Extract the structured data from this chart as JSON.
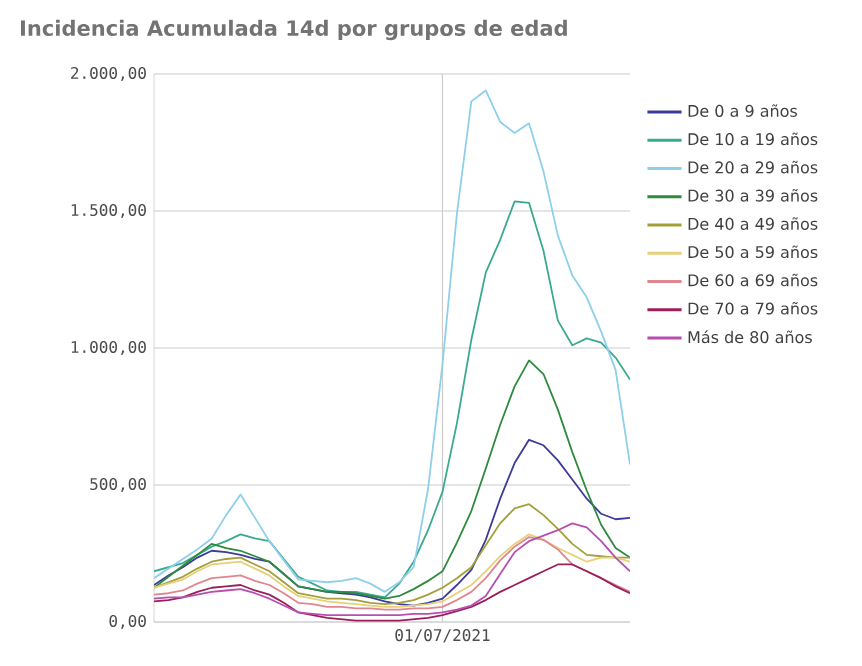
{
  "chart_data": {
    "type": "line",
    "title": "Incidencia Acumulada 14d por grupos de edad",
    "categories": [
      null,
      null,
      null,
      null,
      null,
      null,
      null,
      null,
      null,
      null,
      null,
      null,
      null,
      null,
      null,
      null,
      null,
      null,
      null,
      null,
      "01/07/2021",
      null,
      null,
      null,
      null,
      null,
      null,
      null,
      null,
      null,
      null,
      null,
      null,
      null
    ],
    "series": [
      {
        "name": "De 0 a 9 años",
        "color": "#3b3b9b",
        "values": [
          135,
          170,
          200,
          235,
          260,
          255,
          245,
          230,
          220,
          175,
          130,
          120,
          110,
          105,
          100,
          90,
          75,
          65,
          60,
          70,
          85,
          135,
          190,
          300,
          450,
          580,
          665,
          645,
          590,
          520,
          450,
          395,
          375,
          380
        ]
      },
      {
        "name": "De 10 a 19 años",
        "color": "#3aaa8f",
        "values": [
          185,
          200,
          215,
          245,
          275,
          295,
          320,
          305,
          295,
          230,
          165,
          140,
          115,
          110,
          110,
          100,
          90,
          140,
          220,
          335,
          475,
          725,
          1030,
          1275,
          1395,
          1535,
          1530,
          1355,
          1100,
          1010,
          1035,
          1020,
          965,
          885
        ]
      },
      {
        "name": "De 20 a 29 años",
        "color": "#8ecfeb",
        "values": [
          160,
          195,
          230,
          265,
          305,
          390,
          465,
          380,
          295,
          225,
          155,
          150,
          145,
          150,
          160,
          140,
          110,
          145,
          200,
          485,
          940,
          1490,
          1900,
          1940,
          1825,
          1785,
          1820,
          1645,
          1410,
          1265,
          1185,
          1060,
          920,
          575
        ]
      },
      {
        "name": "De 30 a 39 años",
        "color": "#2e8b3e",
        "values": [
          125,
          165,
          205,
          245,
          285,
          270,
          260,
          240,
          220,
          175,
          130,
          120,
          110,
          110,
          105,
          95,
          85,
          95,
          120,
          150,
          185,
          290,
          405,
          560,
          720,
          860,
          955,
          905,
          775,
          620,
          480,
          355,
          270,
          235
        ]
      },
      {
        "name": "De 40 a 49 años",
        "color": "#a3a03a",
        "values": [
          125,
          145,
          165,
          195,
          220,
          230,
          235,
          210,
          185,
          145,
          105,
          95,
          85,
          85,
          80,
          70,
          65,
          70,
          80,
          100,
          125,
          160,
          200,
          280,
          360,
          415,
          430,
          390,
          340,
          285,
          245,
          240,
          235,
          235
        ]
      },
      {
        "name": "De 50 a 59 años",
        "color": "#e8cf7a",
        "values": [
          125,
          140,
          155,
          185,
          210,
          215,
          220,
          195,
          170,
          130,
          95,
          85,
          75,
          70,
          65,
          60,
          55,
          55,
          60,
          65,
          75,
          105,
          135,
          185,
          240,
          285,
          320,
          300,
          270,
          245,
          220,
          235,
          235,
          220
        ]
      },
      {
        "name": "De 60 a 69 años",
        "color": "#e0868f",
        "values": [
          100,
          105,
          115,
          140,
          160,
          165,
          170,
          150,
          135,
          105,
          70,
          65,
          55,
          55,
          50,
          50,
          45,
          45,
          50,
          50,
          55,
          80,
          110,
          160,
          225,
          275,
          310,
          300,
          265,
          210,
          185,
          160,
          135,
          110
        ]
      },
      {
        "name": "De 70 a 79 años",
        "color": "#9b1f5a",
        "values": [
          75,
          80,
          90,
          110,
          125,
          130,
          135,
          115,
          100,
          70,
          35,
          25,
          15,
          10,
          5,
          5,
          5,
          5,
          10,
          15,
          25,
          40,
          55,
          80,
          110,
          135,
          160,
          185,
          210,
          210,
          185,
          160,
          130,
          105
        ]
      },
      {
        "name": "Más de 80 años",
        "color": "#b84fb0",
        "values": [
          85,
          90,
          90,
          100,
          110,
          115,
          120,
          105,
          85,
          60,
          35,
          30,
          25,
          25,
          25,
          25,
          25,
          25,
          30,
          30,
          35,
          45,
          60,
          95,
          175,
          255,
          295,
          315,
          335,
          360,
          345,
          295,
          235,
          185
        ]
      }
    ],
    "ylim": [
      0,
      2000
    ],
    "yticks": [
      {
        "value": 0,
        "label": "0,00"
      },
      {
        "value": 500,
        "label": "500,00"
      },
      {
        "value": 1000,
        "label": "1.000,00"
      },
      {
        "value": 1500,
        "label": "1.500,00"
      },
      {
        "value": 2000,
        "label": "2.000,00"
      }
    ],
    "grid": true,
    "legend": "right",
    "marker": "none",
    "line_style": "solid"
  }
}
